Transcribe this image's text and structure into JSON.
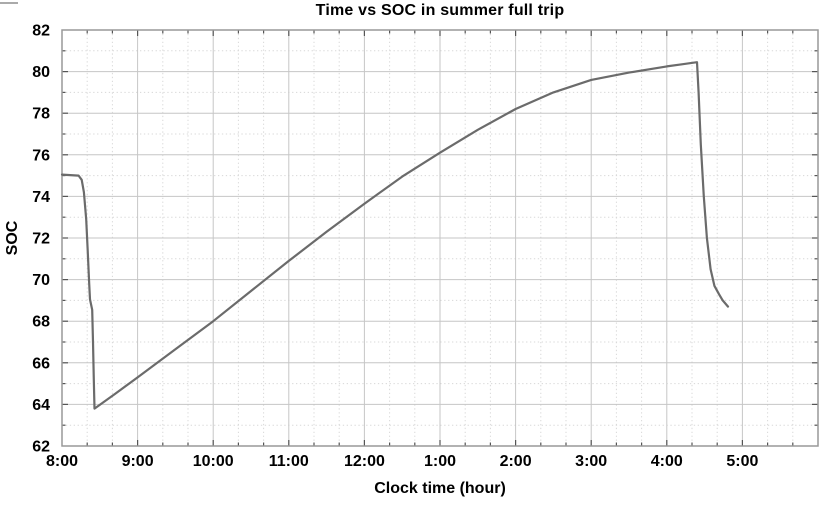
{
  "chart_data": {
    "type": "line",
    "title": "Time vs SOC in summer full trip",
    "xlabel": "Clock time (hour)",
    "ylabel": "SOC",
    "x_axis": {
      "domain_hours": [
        8,
        18
      ],
      "tick_hours": [
        8,
        9,
        10,
        11,
        12,
        13,
        14,
        15,
        16,
        17
      ],
      "tick_labels": [
        "8:00",
        "9:00",
        "10:00",
        "11:00",
        "12:00",
        "1:00",
        "2:00",
        "3:00",
        "4:00",
        "5:00"
      ],
      "minor_divisions_per_hour": 3
    },
    "y_axis": {
      "range": [
        62,
        82
      ],
      "major_tick_step": 2,
      "minor_tick_step": 1,
      "tick_values": [
        62,
        64,
        66,
        68,
        70,
        72,
        74,
        76,
        78,
        80,
        82
      ]
    },
    "grid": {
      "major": true,
      "minor": true,
      "minor_style": "dotted"
    },
    "legend": null,
    "series": [
      {
        "name": "SOC",
        "points": [
          [
            8.0,
            75.05
          ],
          [
            8.22,
            75.0
          ],
          [
            8.26,
            74.8
          ],
          [
            8.29,
            74.2
          ],
          [
            8.32,
            72.9
          ],
          [
            8.34,
            71.4
          ],
          [
            8.36,
            69.8
          ],
          [
            8.37,
            69.05
          ],
          [
            8.385,
            68.8
          ],
          [
            8.4,
            68.55
          ],
          [
            8.41,
            67.0
          ],
          [
            8.42,
            65.2
          ],
          [
            8.43,
            63.8
          ],
          [
            8.7,
            64.5
          ],
          [
            9.0,
            65.3
          ],
          [
            9.5,
            66.65
          ],
          [
            10.0,
            68.0
          ],
          [
            10.5,
            69.45
          ],
          [
            11.0,
            70.9
          ],
          [
            11.5,
            72.3
          ],
          [
            12.0,
            73.65
          ],
          [
            12.5,
            74.95
          ],
          [
            13.0,
            76.1
          ],
          [
            13.5,
            77.2
          ],
          [
            14.0,
            78.2
          ],
          [
            14.5,
            79.0
          ],
          [
            15.0,
            79.6
          ],
          [
            15.5,
            79.95
          ],
          [
            16.0,
            80.25
          ],
          [
            16.2,
            80.35
          ],
          [
            16.4,
            80.45
          ],
          [
            16.42,
            79.0
          ],
          [
            16.45,
            76.5
          ],
          [
            16.49,
            74.0
          ],
          [
            16.53,
            72.0
          ],
          [
            16.58,
            70.5
          ],
          [
            16.63,
            69.7
          ],
          [
            16.69,
            69.3
          ],
          [
            16.74,
            69.0
          ],
          [
            16.81,
            68.7
          ]
        ]
      }
    ],
    "colors": {
      "line": "#6b6b6b",
      "grid_major": "#c6c6c6",
      "grid_minor": "#d8d8d8",
      "frame": "#999999",
      "tick": "#555555",
      "text": "#000000"
    }
  }
}
